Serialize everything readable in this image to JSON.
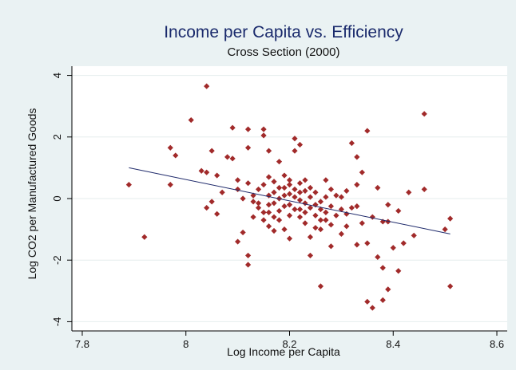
{
  "chart_data": {
    "type": "scatter",
    "title": "Income per Capita vs. Efficiency",
    "subtitle": "Cross Section (2000)",
    "xlabel": "Log Income per Capita",
    "ylabel": "Log CO2 per Manufactured Goods",
    "xlim": [
      7.78,
      8.62
    ],
    "ylim": [
      -4.3,
      4.3
    ],
    "x_ticks": [
      7.8,
      8,
      8.2,
      8.4,
      8.6
    ],
    "x_tick_labels": [
      "7.8",
      "8",
      "8.2",
      "8.4",
      "8.6"
    ],
    "y_ticks": [
      -4,
      -2,
      0,
      2,
      4
    ],
    "y_tick_labels": [
      "-4",
      "-2",
      "0",
      "2",
      "4"
    ],
    "grid": true,
    "legend": "none",
    "colors": {
      "points": "#a12a2a",
      "fit_line": "#1f2a6b",
      "plot_bg": "#ffffff",
      "outer_bg": "#eaf2f3",
      "grid": "#e6eeee"
    },
    "fit_line": {
      "x": [
        7.89,
        8.51
      ],
      "y": [
        1.0,
        -1.15
      ]
    },
    "points": [
      [
        7.89,
        0.45
      ],
      [
        7.92,
        -1.25
      ],
      [
        7.97,
        1.65
      ],
      [
        7.98,
        1.4
      ],
      [
        7.97,
        0.45
      ],
      [
        8.01,
        2.55
      ],
      [
        8.04,
        3.65
      ],
      [
        8.03,
        0.9
      ],
      [
        8.04,
        0.85
      ],
      [
        8.05,
        1.55
      ],
      [
        8.04,
        -0.3
      ],
      [
        8.05,
        -0.1
      ],
      [
        8.06,
        0.75
      ],
      [
        8.06,
        -0.5
      ],
      [
        8.07,
        0.2
      ],
      [
        8.08,
        1.35
      ],
      [
        8.09,
        1.3
      ],
      [
        8.09,
        2.3
      ],
      [
        8.1,
        0.6
      ],
      [
        8.1,
        -1.4
      ],
      [
        8.11,
        -1.1
      ],
      [
        8.12,
        2.25
      ],
      [
        8.12,
        1.65
      ],
      [
        8.12,
        -1.85
      ],
      [
        8.12,
        -2.15
      ],
      [
        8.13,
        0.1
      ],
      [
        8.13,
        -0.6
      ],
      [
        8.14,
        -0.3
      ],
      [
        8.15,
        2.25
      ],
      [
        8.15,
        2.05
      ],
      [
        8.16,
        1.55
      ],
      [
        8.16,
        0.7
      ],
      [
        8.16,
        -0.9
      ],
      [
        8.17,
        0.2
      ],
      [
        8.17,
        -0.6
      ],
      [
        8.18,
        1.2
      ],
      [
        8.18,
        0.0
      ],
      [
        8.18,
        -0.4
      ],
      [
        8.19,
        0.75
      ],
      [
        8.19,
        -1.0
      ],
      [
        8.2,
        0.45
      ],
      [
        8.2,
        -0.2
      ],
      [
        8.2,
        -1.3
      ],
      [
        8.21,
        1.55
      ],
      [
        8.21,
        1.95
      ],
      [
        8.22,
        1.75
      ],
      [
        8.22,
        0.2
      ],
      [
        8.22,
        -0.6
      ],
      [
        8.23,
        0.6
      ],
      [
        8.23,
        -0.15
      ],
      [
        8.24,
        -1.85
      ],
      [
        8.24,
        0.35
      ],
      [
        8.25,
        -0.2
      ],
      [
        8.26,
        -0.7
      ],
      [
        8.26,
        -1.0
      ],
      [
        8.26,
        -2.85
      ],
      [
        8.27,
        0.6
      ],
      [
        8.27,
        -0.45
      ],
      [
        8.28,
        -0.85
      ],
      [
        8.28,
        -1.55
      ],
      [
        8.29,
        0.1
      ],
      [
        8.3,
        -0.35
      ],
      [
        8.3,
        -1.15
      ],
      [
        8.31,
        -0.5
      ],
      [
        8.32,
        1.8
      ],
      [
        8.33,
        1.35
      ],
      [
        8.33,
        -0.25
      ],
      [
        8.33,
        -1.5
      ],
      [
        8.34,
        0.85
      ],
      [
        8.34,
        -0.8
      ],
      [
        8.35,
        2.2
      ],
      [
        8.35,
        -1.45
      ],
      [
        8.35,
        -3.35
      ],
      [
        8.36,
        -0.6
      ],
      [
        8.36,
        -3.55
      ],
      [
        8.37,
        0.35
      ],
      [
        8.37,
        -1.9
      ],
      [
        8.38,
        -0.75
      ],
      [
        8.38,
        -2.25
      ],
      [
        8.38,
        -3.3
      ],
      [
        8.39,
        -0.2
      ],
      [
        8.39,
        -0.75
      ],
      [
        8.39,
        -2.95
      ],
      [
        8.4,
        -1.6
      ],
      [
        8.41,
        -0.4
      ],
      [
        8.41,
        -2.35
      ],
      [
        8.42,
        -1.45
      ],
      [
        8.43,
        0.2
      ],
      [
        8.44,
        -1.2
      ],
      [
        8.46,
        2.75
      ],
      [
        8.46,
        0.3
      ],
      [
        8.5,
        -1.0
      ],
      [
        8.51,
        -0.65
      ],
      [
        8.51,
        -2.85
      ],
      [
        8.1,
        0.3
      ],
      [
        8.11,
        0.0
      ],
      [
        8.12,
        0.5
      ],
      [
        8.13,
        -0.1
      ],
      [
        8.14,
        0.3
      ],
      [
        8.14,
        -0.15
      ],
      [
        8.15,
        0.45
      ],
      [
        8.15,
        -0.45
      ],
      [
        8.16,
        0.1
      ],
      [
        8.16,
        -0.2
      ],
      [
        8.17,
        0.55
      ],
      [
        8.17,
        -0.15
      ],
      [
        8.18,
        0.35
      ],
      [
        8.18,
        -0.7
      ],
      [
        8.19,
        0.1
      ],
      [
        8.19,
        -0.25
      ],
      [
        8.2,
        0.15
      ],
      [
        8.2,
        -0.55
      ],
      [
        8.21,
        0.3
      ],
      [
        8.21,
        -0.35
      ],
      [
        8.22,
        -0.05
      ],
      [
        8.22,
        -0.35
      ],
      [
        8.23,
        0.25
      ],
      [
        8.23,
        -0.45
      ],
      [
        8.24,
        0.05
      ],
      [
        8.24,
        -0.3
      ],
      [
        8.25,
        0.2
      ],
      [
        8.25,
        -0.55
      ],
      [
        8.26,
        -0.1
      ],
      [
        8.26,
        -0.35
      ],
      [
        8.27,
        0.05
      ],
      [
        8.27,
        -0.7
      ],
      [
        8.28,
        0.3
      ],
      [
        8.28,
        -0.25
      ],
      [
        8.29,
        -0.55
      ],
      [
        8.3,
        0.05
      ],
      [
        8.31,
        0.25
      ],
      [
        8.31,
        -0.9
      ],
      [
        8.32,
        -0.3
      ],
      [
        8.33,
        0.45
      ],
      [
        8.19,
        0.35
      ],
      [
        8.2,
        0.6
      ],
      [
        8.21,
        0.05
      ],
      [
        8.22,
        0.5
      ],
      [
        8.23,
        -0.8
      ],
      [
        8.24,
        -1.25
      ],
      [
        8.25,
        -0.95
      ],
      [
        8.17,
        -1.05
      ],
      [
        8.16,
        -0.45
      ],
      [
        8.15,
        -0.7
      ]
    ]
  }
}
